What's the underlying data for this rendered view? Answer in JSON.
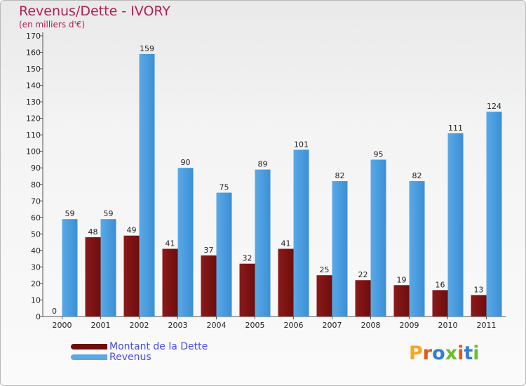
{
  "title": "Revenus/Dette - IVORY",
  "subtitle": "(en milliers d'€)",
  "logo": {
    "text": "Proxiti",
    "colors": [
      "#f5a623",
      "#e05a1c",
      "#2f7fd8",
      "#6abf2e",
      "#e05a1c",
      "#2f7fd8",
      "#6abf2e"
    ]
  },
  "colors": {
    "debt": "#6e0d0d",
    "debt_light": "#8a1a1a",
    "revenue": "#5aa9e6",
    "revenue_dark": "#3b8fd6",
    "title": "#b21f4e",
    "legend_text": "#4a4adf"
  },
  "legend": {
    "debt_label": "Montant de la Dette",
    "revenue_label": "Revenus"
  },
  "chart_data": {
    "type": "bar",
    "categories": [
      "2000",
      "2001",
      "2002",
      "2003",
      "2004",
      "2005",
      "2006",
      "2007",
      "2008",
      "2009",
      "2010",
      "2011"
    ],
    "series": [
      {
        "name": "Montant de la Dette",
        "values": [
          0,
          48,
          49,
          41,
          37,
          32,
          41,
          25,
          22,
          19,
          16,
          13
        ]
      },
      {
        "name": "Revenus",
        "values": [
          59,
          59,
          159,
          90,
          75,
          89,
          101,
          82,
          95,
          82,
          111,
          124
        ]
      }
    ],
    "yticks": [
      0,
      10,
      20,
      30,
      40,
      50,
      60,
      70,
      80,
      90,
      100,
      110,
      120,
      130,
      140,
      150,
      160,
      170
    ],
    "ylim": [
      0,
      170
    ],
    "grid": false,
    "legend_position": "bottom-left"
  }
}
